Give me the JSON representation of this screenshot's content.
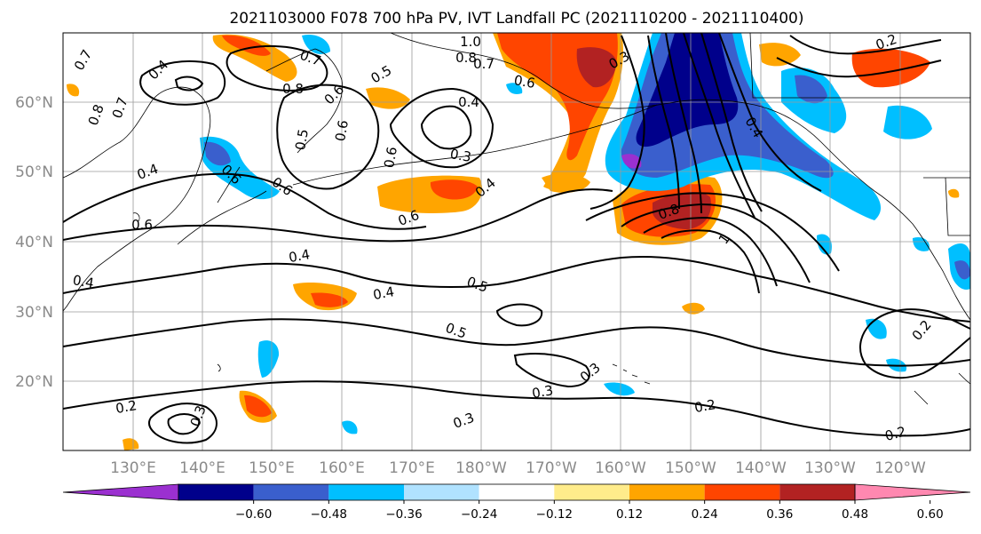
{
  "title": "2021103000 F078 700 hPa PV, IVT Landfall PC (2021110200 - 2021110400)",
  "map": {
    "lat_labels": [
      "60°N",
      "50°N",
      "40°N",
      "30°N",
      "20°N"
    ],
    "lon_labels": [
      "130°E",
      "140°E",
      "150°E",
      "160°E",
      "170°E",
      "180°W",
      "170°W",
      "160°W",
      "150°W",
      "140°W",
      "130°W",
      "120°W"
    ]
  },
  "colorbar": {
    "colors": [
      "#9b30d0",
      "#00008b",
      "#3a5fcd",
      "#00bfff",
      "#b0e2ff",
      "#ffffff",
      "#ffec8b",
      "#ffa500",
      "#ff4500",
      "#b22222",
      "#ff88b0"
    ],
    "tick_labels": [
      "−0.60",
      "−0.48",
      "−0.36",
      "−0.24",
      "−0.12",
      "0.12",
      "0.24",
      "0.36",
      "0.48",
      "0.60"
    ]
  },
  "contour_labels": [
    "0.7",
    "0.4",
    "0.7",
    "0.8",
    "0.5",
    "0.6",
    "1.0",
    "0.8",
    "0.7",
    "0.6",
    "0.3",
    "0.4",
    "0.6",
    "0.5",
    "0.6",
    "0.4",
    "0.3",
    "0.6",
    "0.4",
    "0.6",
    "0.4",
    "0.8",
    "1",
    "0.4",
    "0.5",
    "0.4",
    "0.5",
    "0.3",
    "0.3",
    "0.3",
    "0.2",
    "0.3",
    "0.2",
    "0.2",
    "0.2",
    "0.2",
    "0.4",
    "0.8",
    "0.7",
    "0.6",
    "0.6"
  ]
}
